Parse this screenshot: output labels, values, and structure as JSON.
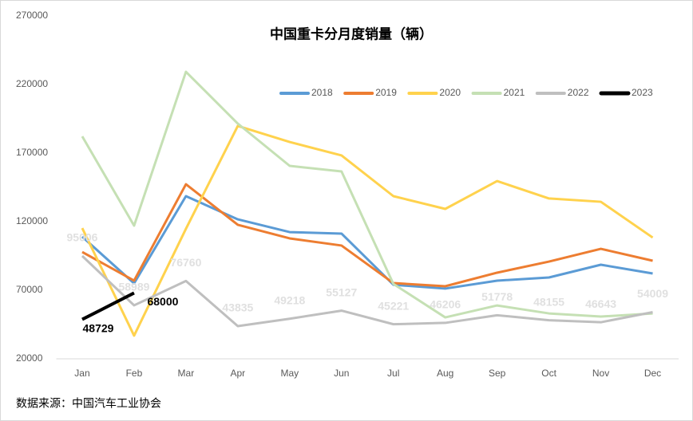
{
  "chart_data": {
    "type": "line",
    "title": "中国重卡分月度销量（辆）",
    "source": "数据来源：中国汽车工业协会",
    "categories": [
      "Jan",
      "Feb",
      "Mar",
      "Apr",
      "May",
      "Jun",
      "Jul",
      "Aug",
      "Sep",
      "Oct",
      "Nov",
      "Dec"
    ],
    "ylim": [
      20000,
      270000
    ],
    "yticks": [
      20000,
      70000,
      120000,
      170000,
      220000,
      270000
    ],
    "grid": false,
    "legend": "top-right",
    "series": [
      {
        "name": "2018",
        "color": "#5b9bd5",
        "values": [
          109000,
          75000,
          138600,
          121700,
          112400,
          111300,
          74000,
          71200,
          77000,
          79300,
          88600,
          82200
        ]
      },
      {
        "name": "2019",
        "color": "#ed7d31",
        "values": [
          97900,
          77000,
          147300,
          117700,
          107800,
          102600,
          75200,
          72900,
          82800,
          90900,
          100200,
          91500
        ]
      },
      {
        "name": "2020",
        "color": "#ffd24d",
        "values": [
          115300,
          36900,
          114800,
          189800,
          178100,
          168300,
          138600,
          129300,
          149600,
          136900,
          134500,
          108400
        ]
      },
      {
        "name": "2021",
        "color": "#c5e0b4",
        "values": [
          182200,
          117100,
          229300,
          191500,
          160700,
          156600,
          74600,
          50200,
          58900,
          53100,
          50800,
          53100
        ]
      },
      {
        "name": "2022",
        "color": "#bfbfbf",
        "data_labels": true,
        "values": [
          95006,
          58989,
          76760,
          43835,
          49218,
          55127,
          45221,
          46206,
          51778,
          48155,
          46643,
          54009
        ]
      },
      {
        "name": "2023",
        "color": "#000000",
        "data_labels": true,
        "values": [
          48729,
          68000,
          null,
          null,
          null,
          null,
          null,
          null,
          null,
          null,
          null,
          null
        ]
      }
    ]
  }
}
